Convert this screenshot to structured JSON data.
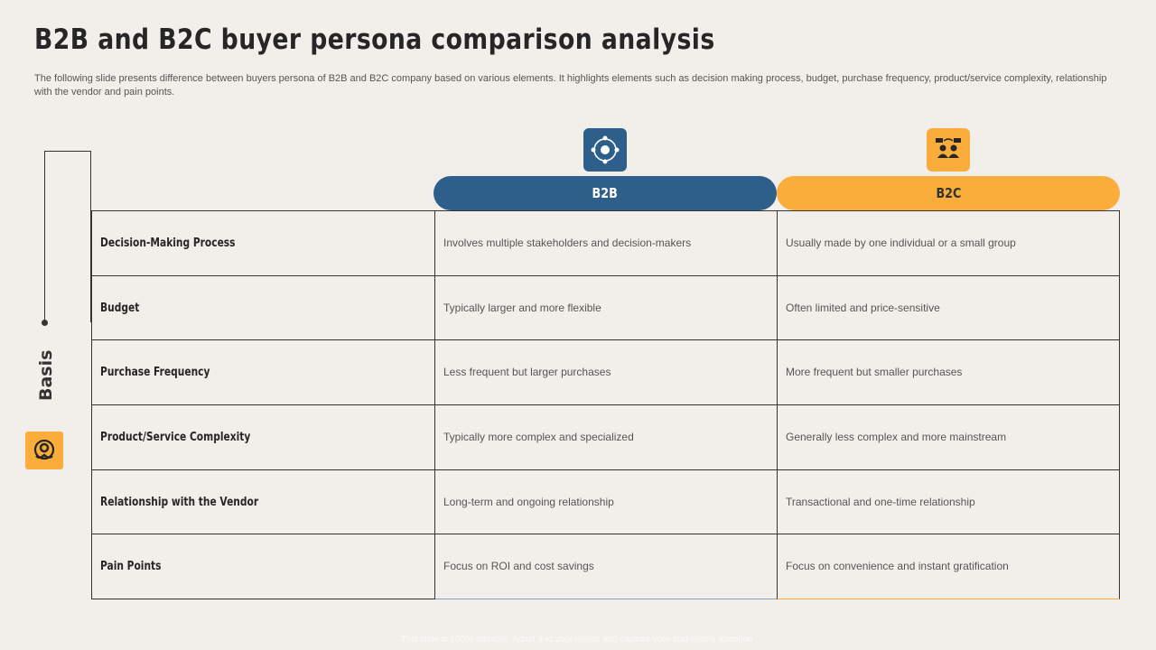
{
  "title": "B2B and B2C buyer persona comparison analysis",
  "subtitle": "The following slide presents difference between buyers persona of B2B and B2C company based on various elements. It highlights elements such as decision making process, budget, purchase frequency, product/service complexity, relationship with the vendor and pain points.",
  "basis_label": "Basis",
  "icons": {
    "basis": "hands-gear-icon",
    "b2b": "b2b-network-icon",
    "b2c": "customer-group-icon"
  },
  "colors": {
    "b2b": "#2e5f8a",
    "b2c": "#fbad3b",
    "background": "#f2efea"
  },
  "columns": {
    "b2b": "B2B",
    "b2c": "B2C"
  },
  "rows": [
    {
      "basis": "Decision-Making Process",
      "b2b": "Involves multiple stakeholders and decision-makers",
      "b2c": "Usually made by one individual or a small group"
    },
    {
      "basis": "Budget",
      "b2b": "Typically larger and more flexible",
      "b2c": "Often limited and price-sensitive"
    },
    {
      "basis": "Purchase Frequency",
      "b2b": "Less frequent but larger purchases",
      "b2c": "More frequent but smaller purchases"
    },
    {
      "basis": "Product/Service Complexity",
      "b2b": "Typically more complex and specialized",
      "b2c": "Generally less complex and more mainstream"
    },
    {
      "basis": "Relationship with the Vendor",
      "b2b": "Long-term and ongoing relationship",
      "b2c": "Transactional and one-time relationship"
    },
    {
      "basis": "Pain Points",
      "b2b": "Focus on ROI and cost savings",
      "b2c": "Focus on convenience and instant gratification"
    }
  ],
  "footer": "This slide is 100% editable. Adapt it to your needs and capture your audience's attention."
}
